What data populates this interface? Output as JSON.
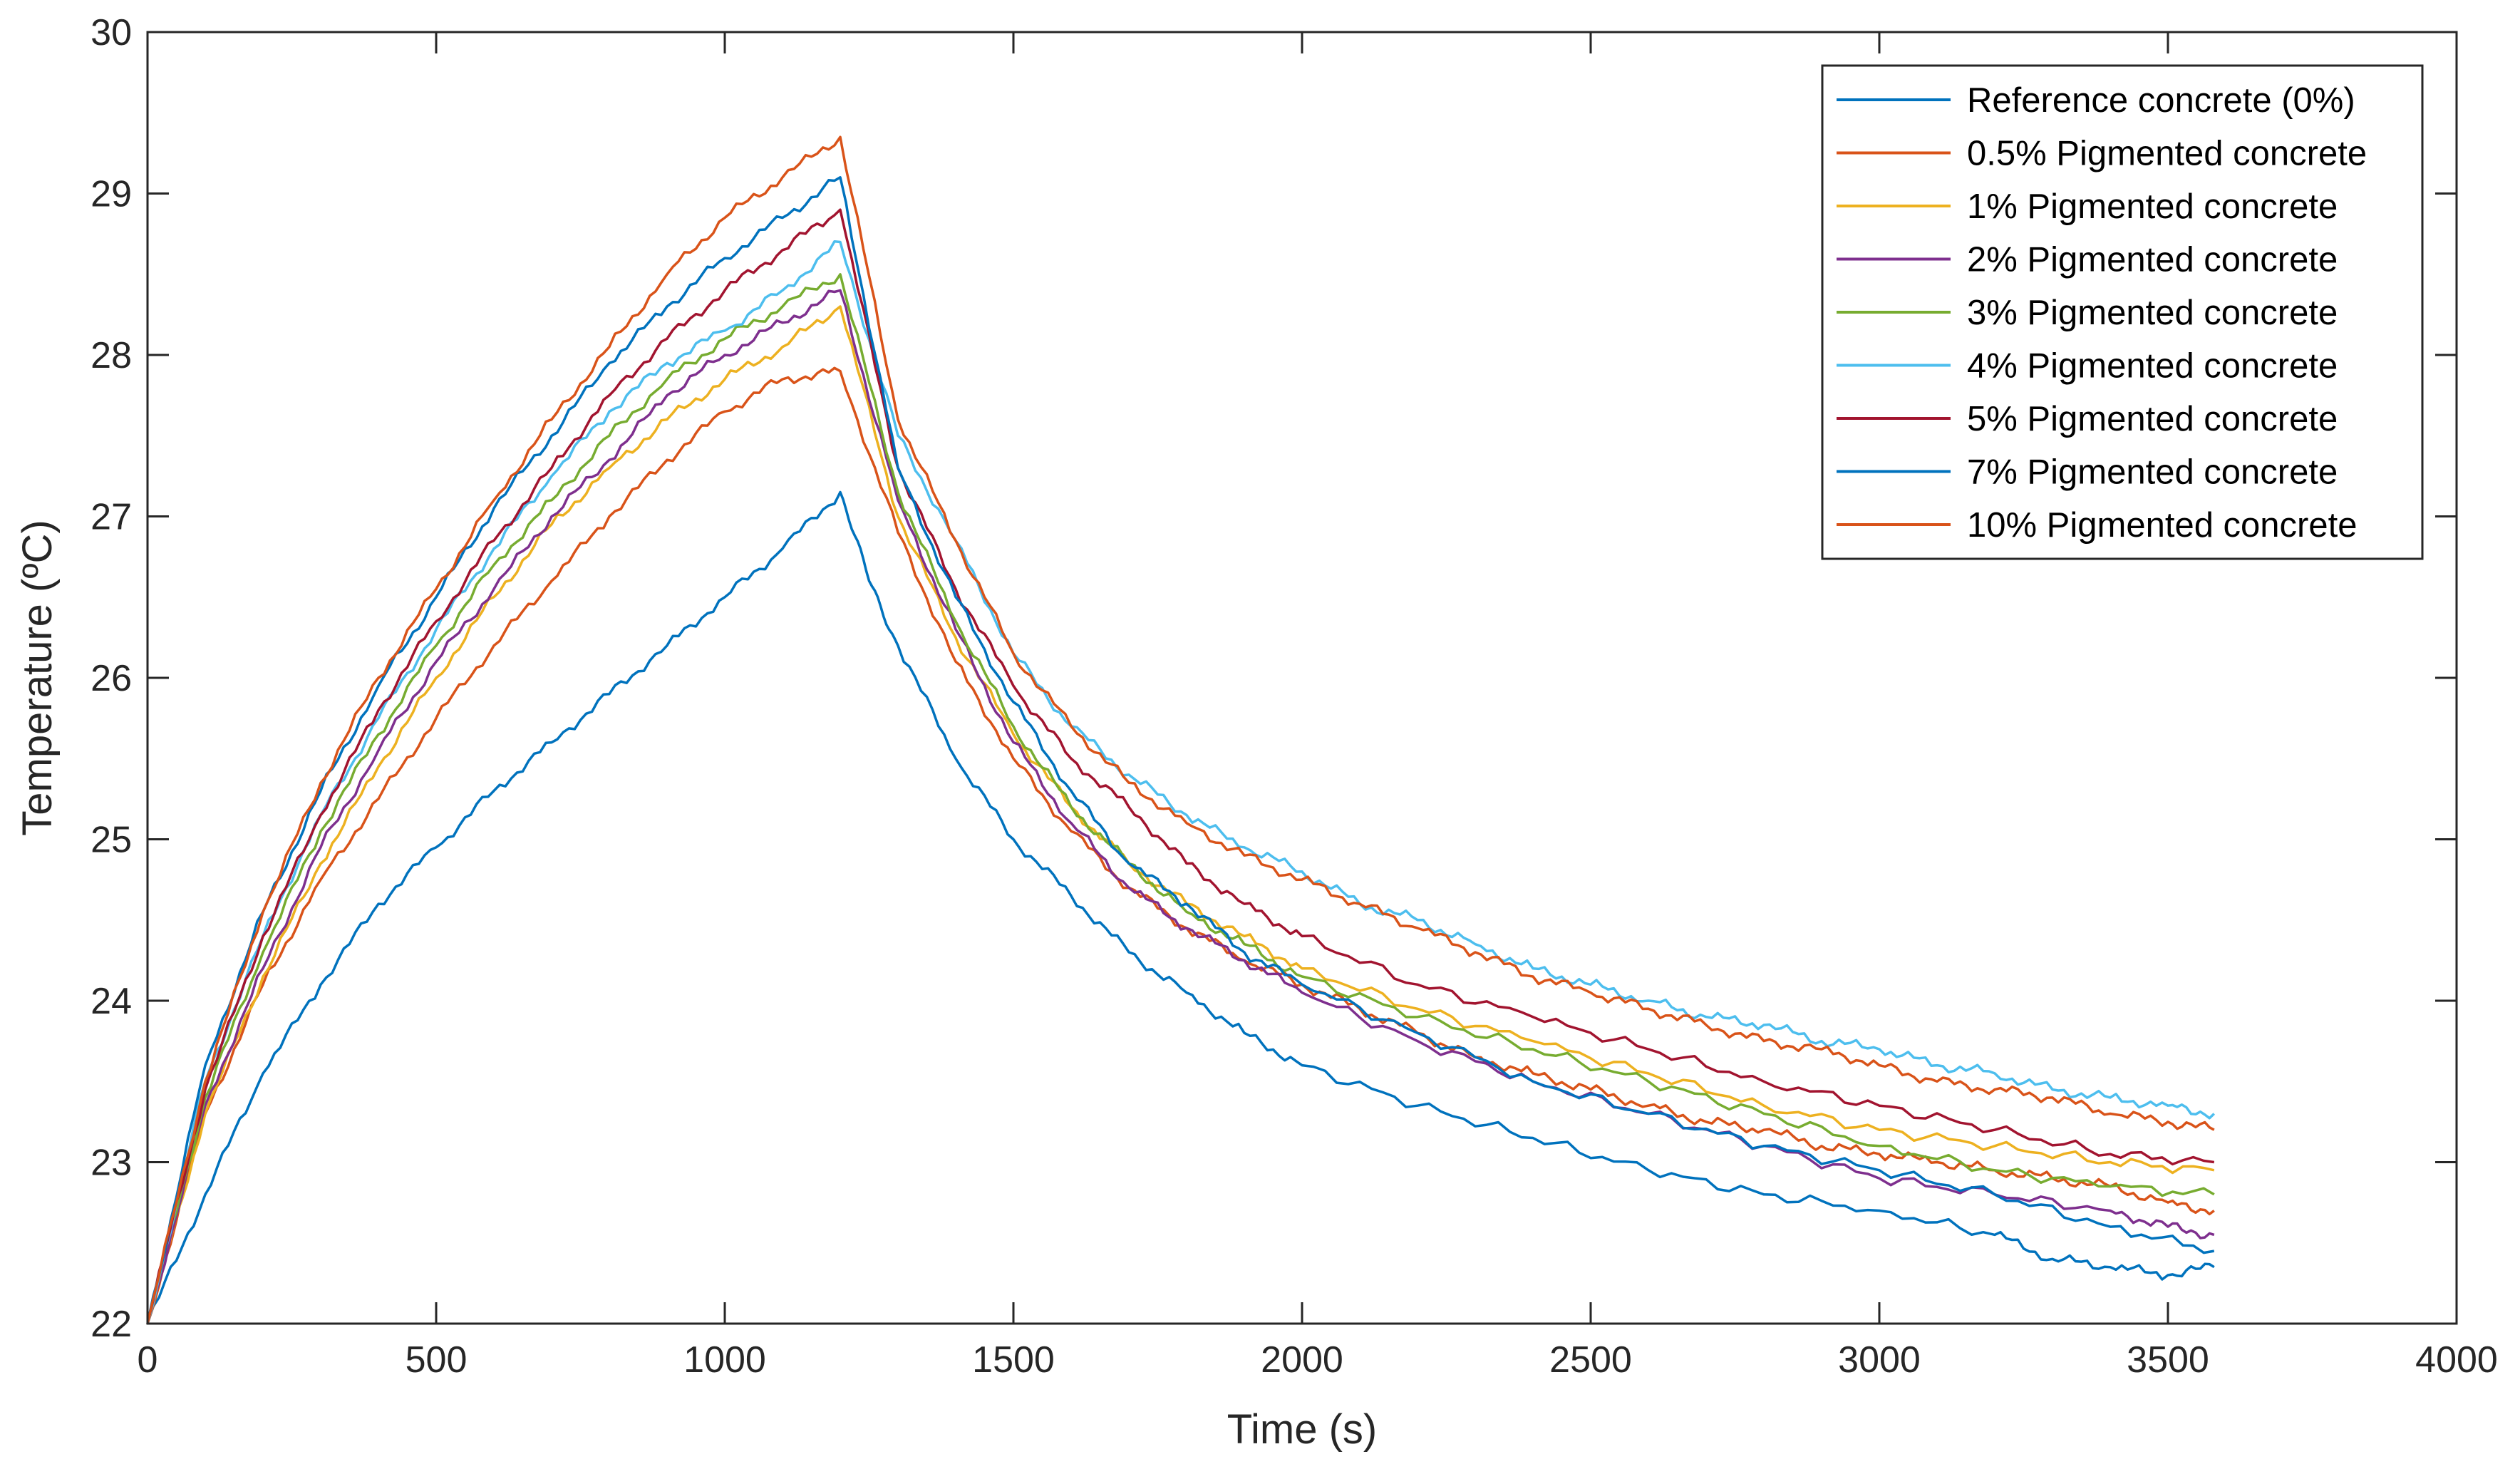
{
  "chart_data": {
    "type": "line",
    "title": "",
    "xlabel": "Time (s)",
    "ylabel": "Temperature (ºC)",
    "xlim": [
      0,
      4000
    ],
    "ylim": [
      22,
      30
    ],
    "xticks": [
      0,
      500,
      1000,
      1500,
      2000,
      2500,
      3000,
      3500,
      4000
    ],
    "yticks": [
      22,
      23,
      24,
      25,
      26,
      27,
      28,
      29,
      30
    ],
    "xtick_labels": [
      "0",
      "500",
      "1000",
      "1500",
      "2000",
      "2500",
      "3000",
      "3500",
      "4000"
    ],
    "ytick_labels": [
      "22",
      "23",
      "24",
      "25",
      "26",
      "27",
      "28",
      "29",
      "30"
    ],
    "grid": false,
    "legend_position": "top-right",
    "series": [
      {
        "name": "Reference concrete (0%)",
        "color": "#0072BD",
        "x": [
          0,
          100,
          200,
          300,
          400,
          500,
          600,
          700,
          800,
          900,
          1000,
          1100,
          1200,
          1250,
          1300,
          1400,
          1500,
          1600,
          1700,
          1800,
          1900,
          2000,
          2200,
          2400,
          2600,
          2800,
          3000,
          3200,
          3300,
          3400,
          3500,
          3580
        ],
        "y": [
          22.0,
          22.8,
          23.55,
          24.1,
          24.6,
          24.95,
          25.3,
          25.6,
          25.9,
          26.2,
          26.5,
          26.8,
          27.15,
          26.6,
          26.2,
          25.5,
          25.0,
          24.65,
          24.3,
          24.05,
          23.8,
          23.6,
          23.35,
          23.15,
          22.95,
          22.8,
          22.7,
          22.55,
          22.4,
          22.35,
          22.3,
          22.35
        ]
      },
      {
        "name": "0.5% Pigmented concrete",
        "color": "#D95319",
        "x": [
          0,
          100,
          200,
          300,
          400,
          500,
          600,
          700,
          800,
          900,
          1000,
          1100,
          1200,
          1300,
          1400,
          1500,
          1600,
          1700,
          1800,
          1900,
          2000,
          2100,
          2200,
          2300,
          2400,
          2500,
          2600,
          2700,
          2800,
          2900,
          3000,
          3100,
          3200,
          3300,
          3400,
          3500,
          3580
        ],
        "y": [
          22.0,
          23.3,
          24.1,
          24.75,
          25.25,
          25.75,
          26.2,
          26.6,
          27.0,
          27.35,
          27.65,
          27.85,
          27.9,
          26.9,
          26.1,
          25.5,
          25.05,
          24.7,
          24.45,
          24.25,
          24.1,
          23.95,
          23.8,
          23.65,
          23.55,
          23.45,
          23.35,
          23.25,
          23.2,
          23.1,
          23.05,
          23.0,
          22.95,
          22.9,
          22.85,
          22.75,
          22.7
        ]
      },
      {
        "name": "1% Pigmented concrete",
        "color": "#EDB120",
        "x": [
          0,
          100,
          200,
          300,
          400,
          500,
          600,
          700,
          800,
          900,
          1000,
          1100,
          1200,
          1300,
          1400,
          1500,
          1600,
          1700,
          1800,
          1900,
          2000,
          2200,
          2400,
          2600,
          2800,
          3000,
          3200,
          3400,
          3580
        ],
        "y": [
          22.0,
          23.3,
          24.15,
          24.85,
          25.45,
          26.0,
          26.5,
          26.95,
          27.3,
          27.6,
          27.85,
          28.05,
          28.3,
          27.0,
          26.25,
          25.65,
          25.2,
          24.85,
          24.6,
          24.4,
          24.2,
          23.95,
          23.75,
          23.55,
          23.35,
          23.2,
          23.1,
          23.0,
          22.95
        ]
      },
      {
        "name": "2% Pigmented concrete",
        "color": "#7E2F8E",
        "x": [
          0,
          100,
          200,
          300,
          400,
          500,
          600,
          700,
          800,
          900,
          1000,
          1100,
          1200,
          1300,
          1400,
          1500,
          1600,
          1700,
          1800,
          1900,
          2000,
          2200,
          2400,
          2600,
          2800,
          3000,
          3200,
          3400,
          3500,
          3580
        ],
        "y": [
          22.0,
          23.35,
          24.2,
          24.95,
          25.55,
          26.1,
          26.55,
          27.0,
          27.35,
          27.75,
          28.0,
          28.2,
          28.4,
          27.1,
          26.3,
          25.6,
          25.1,
          24.7,
          24.45,
          24.25,
          24.05,
          23.75,
          23.5,
          23.3,
          23.1,
          22.9,
          22.8,
          22.7,
          22.6,
          22.55
        ]
      },
      {
        "name": "3% Pigmented concrete",
        "color": "#77AC30",
        "x": [
          0,
          100,
          200,
          300,
          400,
          500,
          600,
          700,
          800,
          900,
          1000,
          1100,
          1200,
          1300,
          1400,
          1500,
          1600,
          1700,
          1800,
          1900,
          2000,
          2200,
          2400,
          2600,
          2800,
          3000,
          3200,
          3400,
          3580
        ],
        "y": [
          22.0,
          23.4,
          24.3,
          25.05,
          25.65,
          26.2,
          26.7,
          27.1,
          27.5,
          27.85,
          28.1,
          28.3,
          28.5,
          27.15,
          26.35,
          25.7,
          25.2,
          24.85,
          24.55,
          24.35,
          24.15,
          23.9,
          23.7,
          23.5,
          23.3,
          23.1,
          22.95,
          22.85,
          22.8
        ]
      },
      {
        "name": "4% Pigmented concrete",
        "color": "#4DBEEE",
        "x": [
          0,
          100,
          200,
          300,
          400,
          500,
          600,
          700,
          800,
          900,
          1000,
          1100,
          1200,
          1300,
          1400,
          1500,
          1600,
          1700,
          1800,
          1900,
          2000,
          2100,
          2200,
          2300,
          2400,
          2500,
          2600,
          2700,
          2800,
          2900,
          3000,
          3100,
          3200,
          3300,
          3400,
          3500,
          3580
        ],
        "y": [
          22.0,
          23.5,
          24.4,
          25.15,
          25.75,
          26.3,
          26.8,
          27.25,
          27.65,
          27.95,
          28.15,
          28.4,
          28.7,
          27.5,
          26.85,
          26.15,
          25.7,
          25.4,
          25.15,
          24.95,
          24.8,
          24.6,
          24.5,
          24.35,
          24.2,
          24.1,
          24.0,
          23.9,
          23.85,
          23.75,
          23.7,
          23.6,
          23.55,
          23.45,
          23.4,
          23.35,
          23.3
        ]
      },
      {
        "name": "5% Pigmented concrete",
        "color": "#A2142F",
        "x": [
          0,
          100,
          200,
          300,
          400,
          500,
          600,
          700,
          800,
          900,
          1000,
          1100,
          1200,
          1300,
          1400,
          1500,
          1600,
          1700,
          1800,
          1900,
          2000,
          2200,
          2400,
          2600,
          2800,
          3000,
          3200,
          3400,
          3580
        ],
        "y": [
          22.0,
          23.45,
          24.4,
          25.15,
          25.8,
          26.35,
          26.85,
          27.3,
          27.75,
          28.1,
          28.4,
          28.65,
          28.9,
          27.3,
          26.55,
          25.95,
          25.5,
          25.2,
          24.85,
          24.6,
          24.4,
          24.1,
          23.9,
          23.7,
          23.5,
          23.35,
          23.2,
          23.05,
          23.0
        ]
      },
      {
        "name": "7% Pigmented concrete",
        "color": "#0072BD",
        "x": [
          0,
          100,
          200,
          300,
          400,
          500,
          600,
          700,
          800,
          900,
          1000,
          1100,
          1200,
          1300,
          1400,
          1500,
          1600,
          1700,
          1800,
          1900,
          2000,
          2200,
          2400,
          2600,
          2800,
          3000,
          3200,
          3400,
          3580
        ],
        "y": [
          22.0,
          23.6,
          24.55,
          25.3,
          25.95,
          26.5,
          27.05,
          27.5,
          27.95,
          28.3,
          28.6,
          28.85,
          29.1,
          27.3,
          26.5,
          25.85,
          25.3,
          24.85,
          24.6,
          24.3,
          24.1,
          23.8,
          23.5,
          23.3,
          23.1,
          22.95,
          22.8,
          22.6,
          22.45
        ]
      },
      {
        "name": "10% Pigmented concrete",
        "color": "#D95319",
        "x": [
          0,
          100,
          200,
          300,
          400,
          500,
          600,
          700,
          800,
          900,
          1000,
          1100,
          1200,
          1300,
          1400,
          1500,
          1600,
          1700,
          1800,
          1900,
          2000,
          2100,
          2200,
          2300,
          2400,
          2500,
          2600,
          2700,
          2800,
          2900,
          3000,
          3100,
          3200,
          3300,
          3400,
          3500,
          3580
        ],
        "y": [
          22.0,
          23.5,
          24.55,
          25.35,
          26.0,
          26.55,
          27.1,
          27.6,
          28.05,
          28.5,
          28.85,
          29.1,
          29.35,
          27.6,
          26.85,
          26.15,
          25.7,
          25.35,
          25.1,
          24.9,
          24.75,
          24.6,
          24.45,
          24.3,
          24.15,
          24.05,
          23.95,
          23.85,
          23.75,
          23.7,
          23.6,
          23.5,
          23.45,
          23.4,
          23.3,
          23.25,
          23.2
        ]
      }
    ]
  }
}
